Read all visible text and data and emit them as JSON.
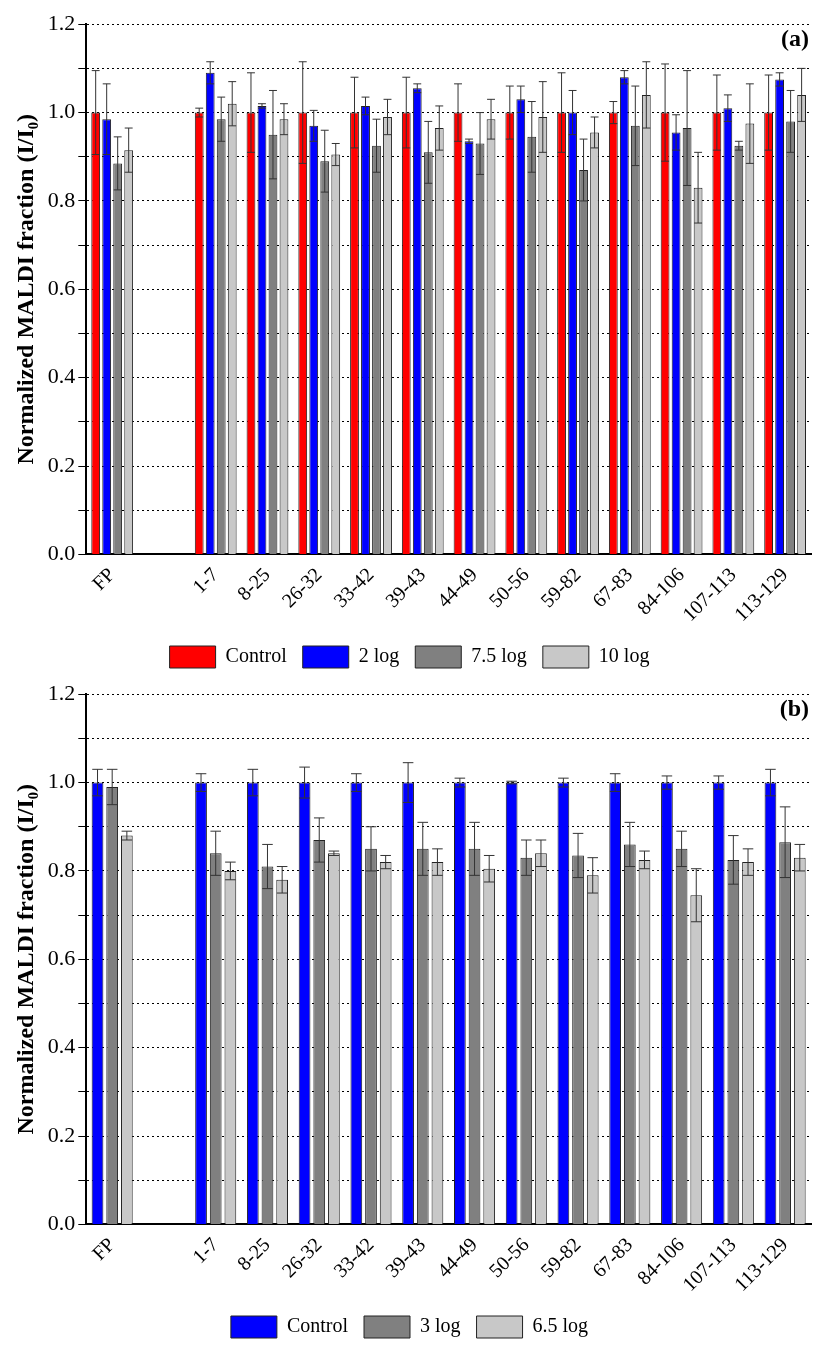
{
  "chart_data": [
    {
      "type": "bar",
      "title": "(a)",
      "ylabel": "Normalized MALDI fraction (I/I₀)",
      "categories": [
        "FP",
        null,
        "1-7",
        "8-25",
        "26-32",
        "33-42",
        "39-43",
        "44-49",
        "50-56",
        "59-82",
        "67-83",
        "84-106",
        "107-113",
        "113-129"
      ],
      "series": [
        {
          "name": "Control",
          "color": "#ff0000",
          "values": [
            1.0,
            null,
            1.0,
            1.0,
            1.0,
            1.0,
            1.0,
            1.0,
            1.0,
            1.0,
            1.0,
            1.0,
            1.0,
            1.0
          ],
          "errors": [
            0.095,
            null,
            0.01,
            0.09,
            0.115,
            0.08,
            0.08,
            0.065,
            0.06,
            0.09,
            0.025,
            0.11,
            0.085,
            0.085
          ]
        },
        {
          "name": "2 log",
          "color": "#0000ff",
          "values": [
            0.985,
            null,
            1.09,
            1.015,
            0.97,
            1.015,
            1.055,
            0.935,
            1.03,
            1.0,
            1.08,
            0.955,
            1.01,
            1.075
          ],
          "errors": [
            0.08,
            null,
            0.025,
            0.005,
            0.035,
            0.02,
            0.01,
            0.005,
            0.03,
            0.05,
            0.015,
            0.04,
            0.03,
            0.015
          ]
        },
        {
          "name": "7.5 log",
          "color": "#808080",
          "values": [
            0.885,
            null,
            0.985,
            0.95,
            0.89,
            0.925,
            0.91,
            0.93,
            0.945,
            0.87,
            0.97,
            0.965,
            0.925,
            0.98
          ],
          "errors": [
            0.06,
            null,
            0.05,
            0.1,
            0.07,
            0.06,
            0.07,
            0.07,
            0.08,
            0.07,
            0.09,
            0.13,
            0.01,
            0.07
          ]
        },
        {
          "name": "10 log",
          "color": "#c8c8c8",
          "values": [
            0.915,
            null,
            1.02,
            0.985,
            0.905,
            0.99,
            0.965,
            0.985,
            0.99,
            0.955,
            1.04,
            0.83,
            0.975,
            1.04
          ],
          "errors": [
            0.05,
            null,
            0.05,
            0.035,
            0.025,
            0.04,
            0.05,
            0.045,
            0.08,
            0.035,
            0.075,
            0.08,
            0.09,
            0.06
          ]
        }
      ],
      "ylim": [
        0,
        1.2
      ],
      "yticks": [
        {
          "value": 0,
          "label": "0.0"
        },
        {
          "value": 0.1,
          "label": null
        },
        {
          "value": 0.2,
          "label": "0.2"
        },
        {
          "value": 0.3,
          "label": null
        },
        {
          "value": 0.4,
          "label": "0.4"
        },
        {
          "value": 0.5,
          "label": null
        },
        {
          "value": 0.6,
          "label": "0.6"
        },
        {
          "value": 0.7,
          "label": null
        },
        {
          "value": 0.8,
          "label": "0.8"
        },
        {
          "value": 0.9,
          "label": null
        },
        {
          "value": 1.0,
          "label": "1.0"
        },
        {
          "value": 1.1,
          "label": null
        },
        {
          "value": 1.2,
          "label": "1.2"
        }
      ],
      "grid": "y",
      "legend": "bottom"
    },
    {
      "type": "bar",
      "title": "(b)",
      "ylabel": "Normalized MALDI fraction (I/I₀)",
      "categories": [
        "FP",
        null,
        "1-7",
        "8-25",
        "26-32",
        "33-42",
        "39-43",
        "44-49",
        "50-56",
        "59-82",
        "67-83",
        "84-106",
        "107-113",
        "113-129"
      ],
      "series": [
        {
          "name": "Control",
          "color": "#0000ff",
          "values": [
            1.0,
            null,
            1.0,
            1.0,
            1.0,
            1.0,
            1.0,
            1.0,
            1.0,
            1.0,
            1.0,
            1.0,
            1.0,
            1.0
          ],
          "errors": [
            0.03,
            null,
            0.02,
            0.03,
            0.035,
            0.02,
            0.045,
            0.01,
            0.003,
            0.01,
            0.02,
            0.015,
            0.015,
            0.03
          ]
        },
        {
          "name": "3 log",
          "color": "#808080",
          "values": [
            0.99,
            null,
            0.84,
            0.81,
            0.87,
            0.85,
            0.85,
            0.85,
            0.83,
            0.835,
            0.86,
            0.85,
            0.825,
            0.865
          ],
          "errors": [
            0.04,
            null,
            0.05,
            0.05,
            0.05,
            0.05,
            0.06,
            0.06,
            0.04,
            0.05,
            0.05,
            0.04,
            0.055,
            0.08
          ]
        },
        {
          "name": "6.5 log",
          "color": "#c8c8c8",
          "values": [
            0.88,
            null,
            0.8,
            0.78,
            0.84,
            0.82,
            0.82,
            0.805,
            0.84,
            0.79,
            0.825,
            0.745,
            0.82,
            0.83
          ],
          "errors": [
            0.01,
            null,
            0.02,
            0.03,
            0.005,
            0.015,
            0.03,
            0.03,
            0.03,
            0.04,
            0.02,
            0.06,
            0.03,
            0.03
          ]
        }
      ],
      "ylim": [
        0,
        1.2
      ],
      "yticks": [
        {
          "value": 0,
          "label": "0.0"
        },
        {
          "value": 0.1,
          "label": null
        },
        {
          "value": 0.2,
          "label": "0.2"
        },
        {
          "value": 0.3,
          "label": null
        },
        {
          "value": 0.4,
          "label": "0.4"
        },
        {
          "value": 0.5,
          "label": null
        },
        {
          "value": 0.6,
          "label": "0.6"
        },
        {
          "value": 0.7,
          "label": null
        },
        {
          "value": 0.8,
          "label": "0.8"
        },
        {
          "value": 0.9,
          "label": null
        },
        {
          "value": 1.0,
          "label": "1.0"
        },
        {
          "value": 1.1,
          "label": null
        },
        {
          "value": 1.2,
          "label": "1.2"
        }
      ],
      "grid": "y",
      "legend": "bottom"
    }
  ]
}
